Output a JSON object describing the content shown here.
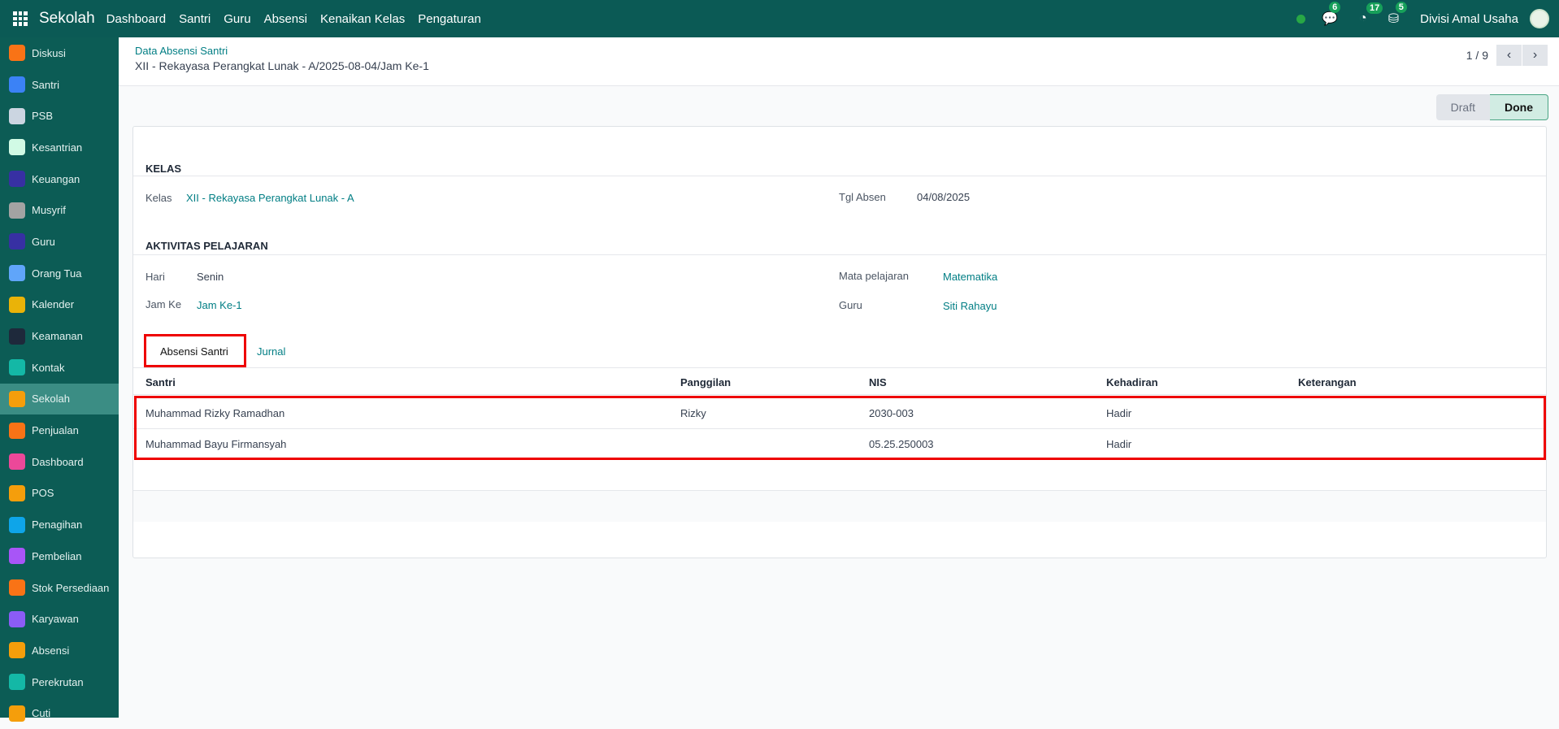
{
  "navbar": {
    "brand": "Sekolah",
    "menu": [
      "Dashboard",
      "Santri",
      "Guru",
      "Absensi",
      "Kenaikan Kelas",
      "Pengaturan"
    ],
    "messages_count": "6",
    "activities_count": "17",
    "approvals_count": "5",
    "user": "Divisi Amal Usaha"
  },
  "sidebar": {
    "items": [
      {
        "label": "Diskusi",
        "color": "#f97316"
      },
      {
        "label": "Santri",
        "color": "#3b82f6"
      },
      {
        "label": "PSB",
        "color": "#cbd5e1"
      },
      {
        "label": "Kesantrian",
        "color": "#d1fae5"
      },
      {
        "label": "Keuangan",
        "color": "#3730a3"
      },
      {
        "label": "Musyrif",
        "color": "#a3a3a3"
      },
      {
        "label": "Guru",
        "color": "#3730a3"
      },
      {
        "label": "Orang Tua",
        "color": "#60a5fa"
      },
      {
        "label": "Kalender",
        "color": "#eab308"
      },
      {
        "label": "Keamanan",
        "color": "#1e293b"
      },
      {
        "label": "Kontak",
        "color": "#14b8a6"
      },
      {
        "label": "Sekolah",
        "color": "#f59e0b",
        "active": true
      },
      {
        "label": "Penjualan",
        "color": "#f97316"
      },
      {
        "label": "Dashboard",
        "color": "#ec4899"
      },
      {
        "label": "POS",
        "color": "#f59e0b"
      },
      {
        "label": "Penagihan",
        "color": "#0ea5e9"
      },
      {
        "label": "Pembelian",
        "color": "#a855f7"
      },
      {
        "label": "Stok Persediaan",
        "color": "#f97316"
      },
      {
        "label": "Karyawan",
        "color": "#8b5cf6"
      },
      {
        "label": "Absensi",
        "color": "#f59e0b"
      },
      {
        "label": "Perekrutan",
        "color": "#14b8a6"
      },
      {
        "label": "Cuti",
        "color": "#f59e0b"
      }
    ]
  },
  "header": {
    "breadcrumb_parent": "Data Absensi Santri",
    "record_title": "XII - Rekayasa Perangkat Lunak - A/2025-08-04/Jam Ke-1",
    "pager": "1 / 9"
  },
  "status": {
    "draft": "Draft",
    "done": "Done",
    "current": "Done"
  },
  "form": {
    "kelas_section": "KELAS",
    "kelas_label": "Kelas",
    "kelas_value": "XII - Rekayasa Perangkat Lunak - A",
    "tgl_label": "Tgl Absen",
    "tgl_value": "04/08/2025",
    "aktivitas_section": "AKTIVITAS PELAJARAN",
    "hari_label": "Hari",
    "hari_value": "Senin",
    "jam_label": "Jam Ke",
    "jam_value": "Jam Ke-1",
    "mapel_label": "Mata pelajaran",
    "mapel_value": "Matematika",
    "guru_label": "Guru",
    "guru_value": "Siti Rahayu"
  },
  "tabs": [
    "Absensi Santri",
    "Jurnal"
  ],
  "table": {
    "headers": [
      "Santri",
      "Panggilan",
      "NIS",
      "Kehadiran",
      "Keterangan"
    ],
    "rows": [
      [
        "Muhammad Rizky Ramadhan",
        "Rizky",
        "2030-003",
        "Hadir",
        ""
      ],
      [
        "Muhammad Bayu Firmansyah",
        "",
        "05.25.250003",
        "Hadir",
        ""
      ]
    ]
  }
}
